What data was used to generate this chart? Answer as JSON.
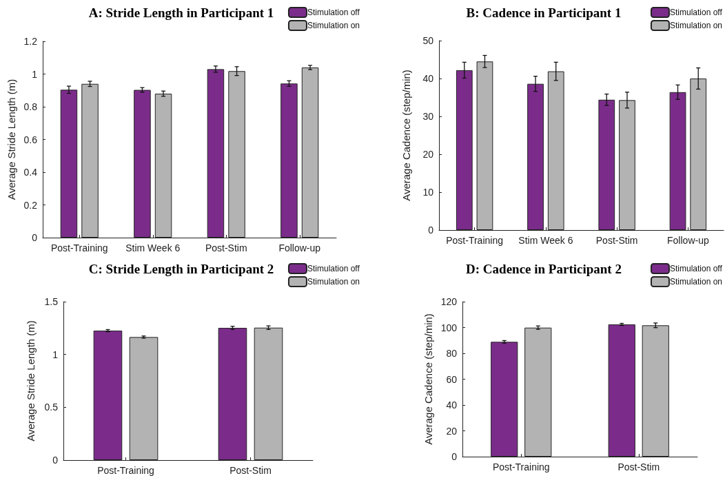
{
  "chart_data": [
    {
      "type": "bar",
      "title": "A: Stride Length in Participant 1",
      "ylabel": "Average Stride Length (m)",
      "categories": [
        "Post-Training",
        "Stim Week 6",
        "Post-Stim",
        "Follow-up"
      ],
      "series": [
        {
          "name": "Stimulation off",
          "color": "#7b2c8a",
          "values": [
            0.904,
            0.903,
            1.03,
            0.942
          ],
          "errors": [
            0.022,
            0.014,
            0.019,
            0.017
          ]
        },
        {
          "name": "Stimulation on",
          "color": "#b3b3b3",
          "values": [
            0.94,
            0.88,
            1.018,
            1.04
          ],
          "errors": [
            0.016,
            0.016,
            0.027,
            0.013
          ]
        }
      ],
      "ylim": [
        0,
        1.2
      ],
      "yticks": [
        0,
        0.2,
        0.4,
        0.6,
        0.8,
        1,
        1.2
      ],
      "grid": false,
      "legend": "top right"
    },
    {
      "type": "bar",
      "title": "B: Cadence in Participant 1",
      "ylabel": "Average Cadence (step/min)",
      "categories": [
        "Post-Training",
        "Stim Week 6",
        "Post-Stim",
        "Follow-up"
      ],
      "series": [
        {
          "name": "Stimulation off",
          "color": "#7b2c8a",
          "values": [
            42.2,
            38.6,
            34.4,
            36.4
          ],
          "errors": [
            2.1,
            2.0,
            1.5,
            1.9
          ]
        },
        {
          "name": "Stimulation on",
          "color": "#b3b3b3",
          "values": [
            44.5,
            41.9,
            34.3,
            40.0
          ],
          "errors": [
            1.6,
            2.4,
            2.1,
            2.8
          ]
        }
      ],
      "ylim": [
        0,
        50
      ],
      "yticks": [
        0,
        10,
        20,
        30,
        40,
        50
      ],
      "grid": false,
      "legend": "top right"
    },
    {
      "type": "bar",
      "title": "C: Stride Length in Participant 2",
      "ylabel": "Average Stride Length (m)",
      "categories": [
        "Post-Training",
        "Post-Stim"
      ],
      "series": [
        {
          "name": "Stimulation off",
          "color": "#7b2c8a",
          "values": [
            1.226,
            1.252
          ],
          "errors": [
            0.01,
            0.015
          ]
        },
        {
          "name": "Stimulation on",
          "color": "#b3b3b3",
          "values": [
            1.165,
            1.254
          ],
          "errors": [
            0.01,
            0.017
          ]
        }
      ],
      "ylim": [
        0,
        1.5
      ],
      "yticks": [
        0,
        0.5,
        1,
        1.5
      ],
      "grid": false,
      "legend": "top right"
    },
    {
      "type": "bar",
      "title": "D: Cadence in Participant 2",
      "ylabel": "Average Cadence (step/min)",
      "categories": [
        "Post-Training",
        "Post-Stim"
      ],
      "series": [
        {
          "name": "Stimulation off",
          "color": "#7b2c8a",
          "values": [
            88.9,
            102.4
          ],
          "errors": [
            1.0,
            0.8
          ]
        },
        {
          "name": "Stimulation on",
          "color": "#b3b3b3",
          "values": [
            99.9,
            101.7
          ],
          "errors": [
            1.3,
            1.8
          ]
        }
      ],
      "ylim": [
        0,
        120
      ],
      "yticks": [
        0,
        20,
        40,
        60,
        80,
        100,
        120
      ],
      "grid": false,
      "legend": "top right"
    }
  ]
}
